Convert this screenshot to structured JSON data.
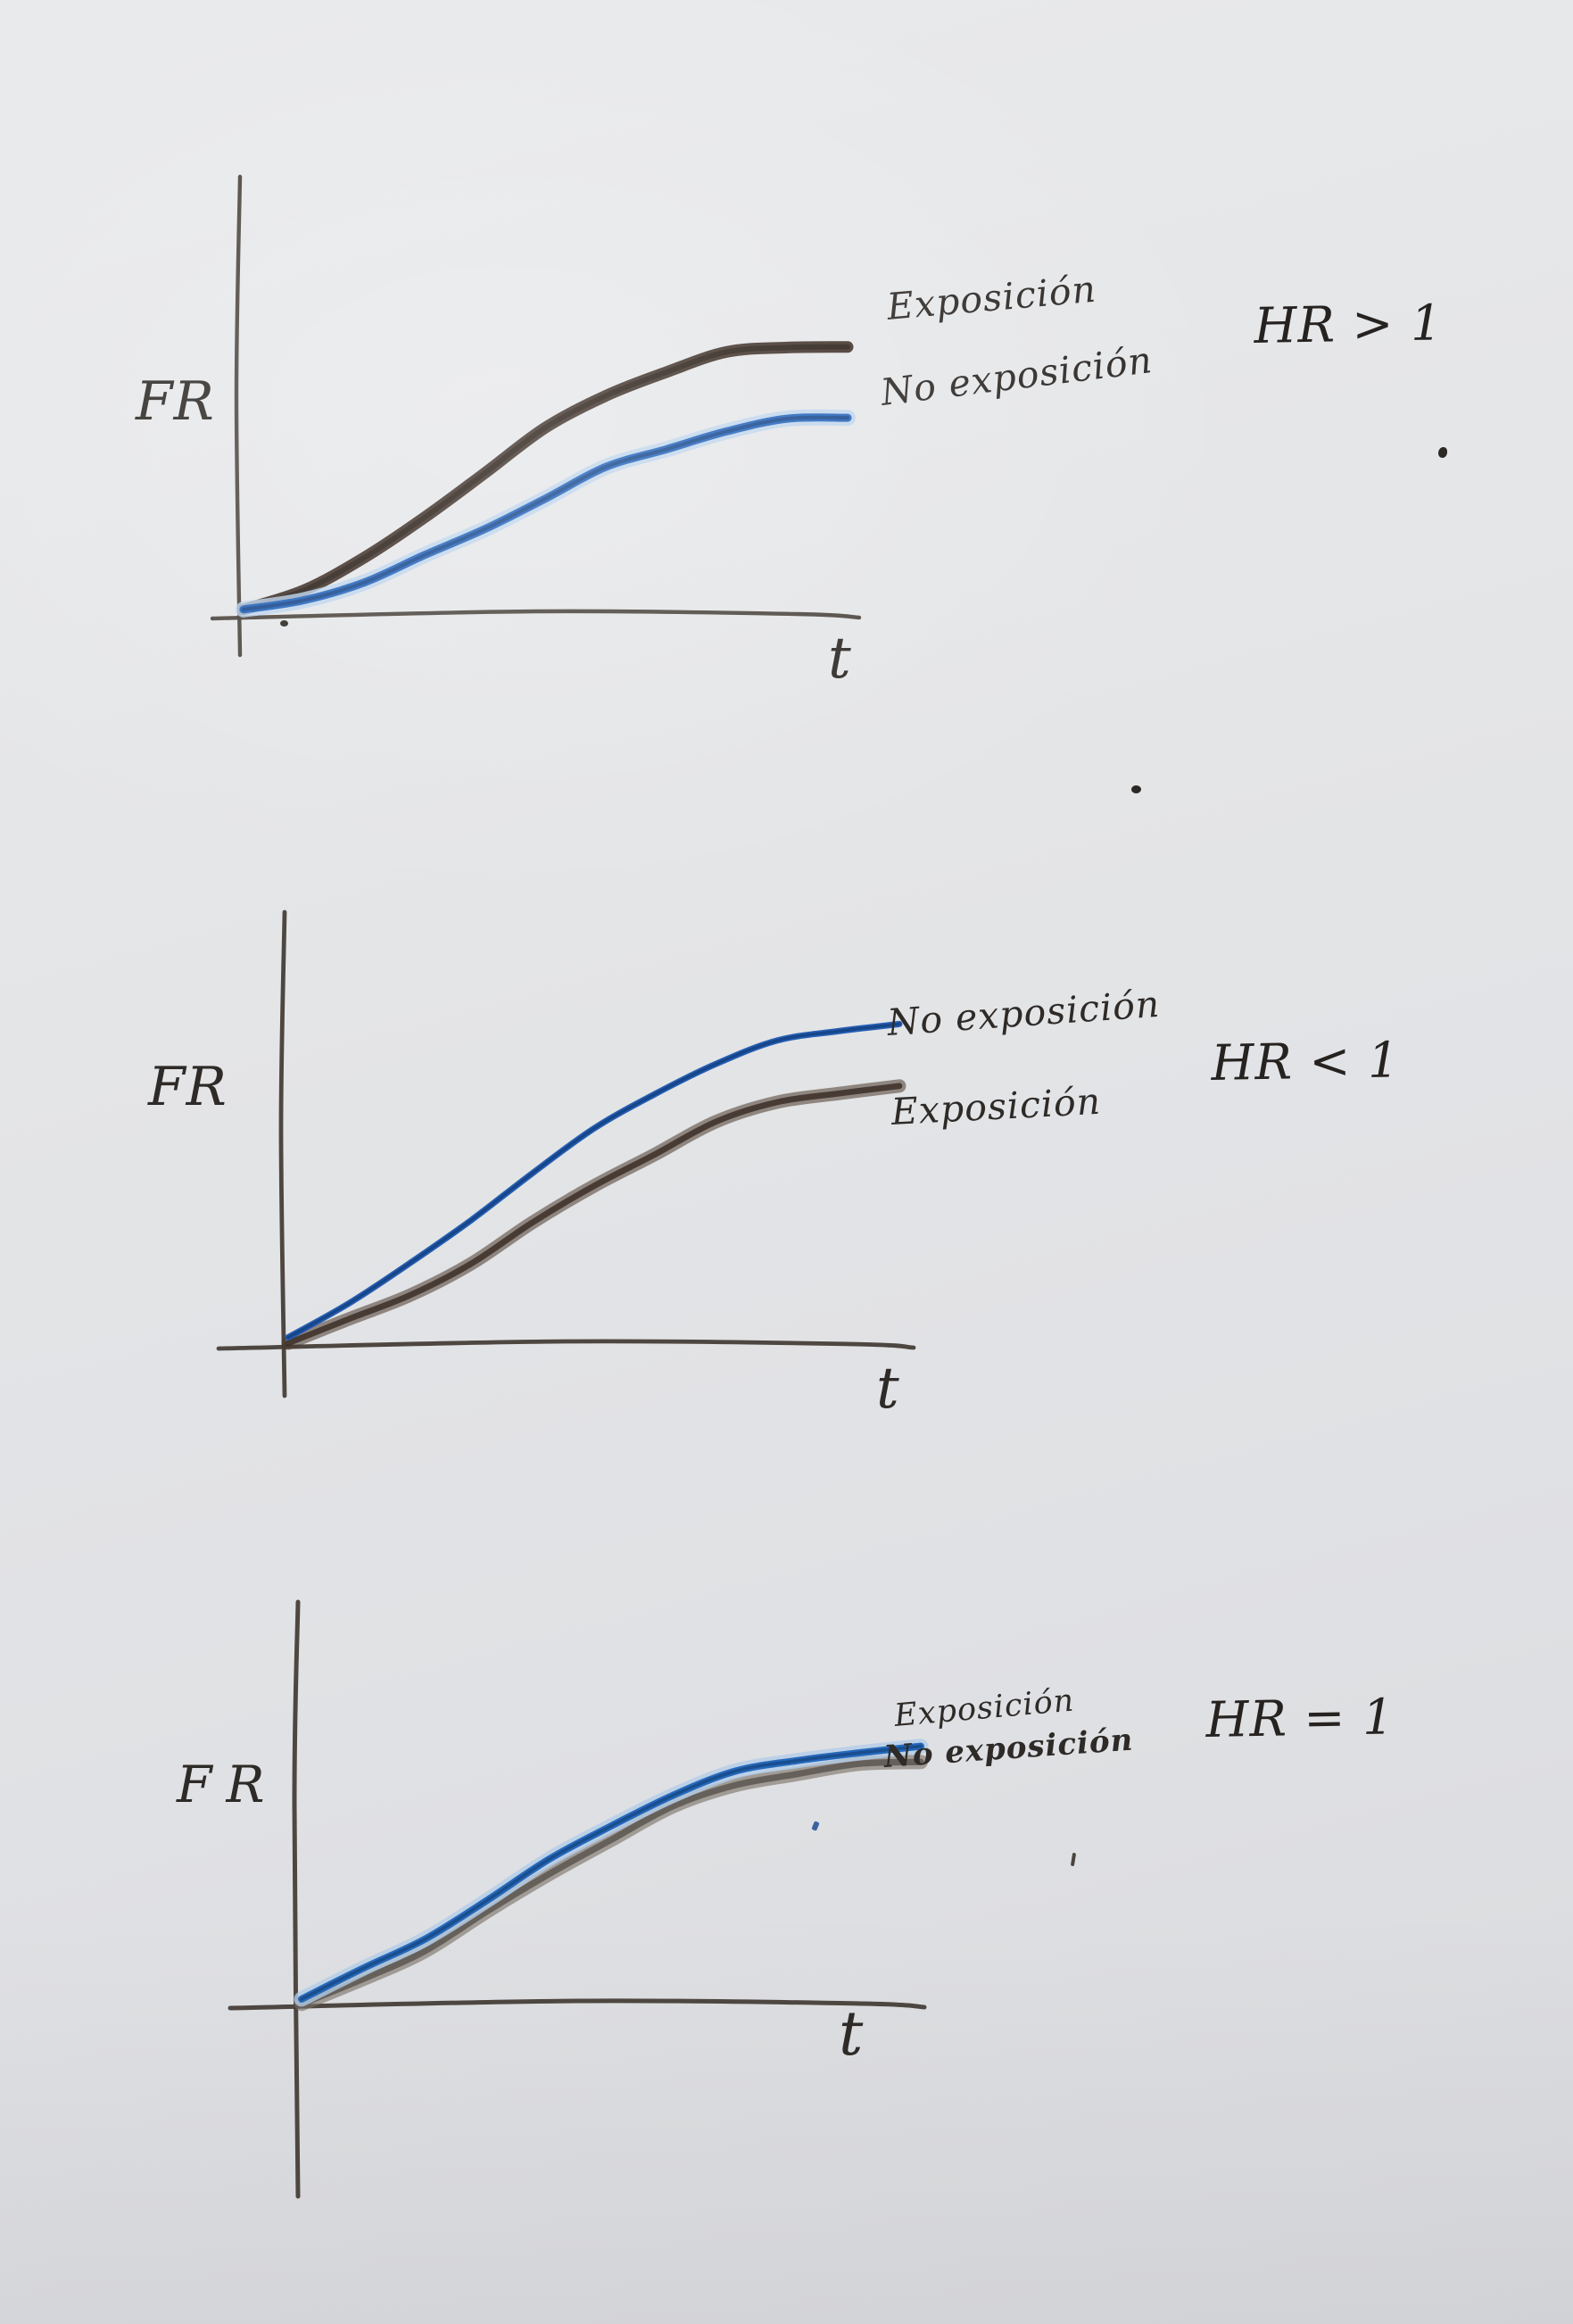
{
  "photo": {
    "paper_color": "#e4e5e7",
    "ink_color": "#3b3430",
    "pencil_black": "#35261d",
    "pencil_blue": "#1e5fb8"
  },
  "chart_data": [
    {
      "type": "line",
      "title": "HR > 1",
      "xlabel": "t",
      "ylabel": "FR",
      "x": [
        0,
        0.1,
        0.2,
        0.3,
        0.4,
        0.5,
        0.6,
        0.7,
        0.8,
        0.9,
        1.0
      ],
      "xlim": [
        0,
        1
      ],
      "ylim": [
        0,
        1
      ],
      "grid": false,
      "legend": "inline-right",
      "series": [
        {
          "name": "Exposición",
          "color": "#35261d",
          "halo": "",
          "values": [
            0,
            0.05,
            0.12,
            0.22,
            0.33,
            0.43,
            0.51,
            0.57,
            0.61,
            0.625,
            0.63
          ]
        },
        {
          "name": "No exposición",
          "color": "#1e5fb8",
          "halo": "#b9d3ee",
          "values": [
            0,
            0.03,
            0.07,
            0.13,
            0.2,
            0.27,
            0.34,
            0.39,
            0.43,
            0.455,
            0.465
          ]
        }
      ]
    },
    {
      "type": "line",
      "title": "HR < 1",
      "xlabel": "t",
      "ylabel": "FR",
      "x": [
        0,
        0.1,
        0.2,
        0.3,
        0.4,
        0.5,
        0.6,
        0.7,
        0.8,
        0.9,
        1.0
      ],
      "xlim": [
        0,
        1
      ],
      "ylim": [
        0,
        1
      ],
      "grid": false,
      "legend": "inline-right",
      "series": [
        {
          "name": "Exposición",
          "color": "#4a382c",
          "halo": "",
          "values": [
            0,
            0.05,
            0.11,
            0.19,
            0.28,
            0.37,
            0.45,
            0.52,
            0.57,
            0.595,
            0.605
          ]
        },
        {
          "name": "No exposición",
          "color": "#1b57b0",
          "halo": "",
          "values": [
            0,
            0.08,
            0.17,
            0.28,
            0.39,
            0.49,
            0.58,
            0.65,
            0.7,
            0.73,
            0.745
          ]
        }
      ]
    },
    {
      "type": "line",
      "title": "HR = 1",
      "xlabel": "t",
      "ylabel": "FR",
      "x": [
        0,
        0.1,
        0.2,
        0.3,
        0.4,
        0.5,
        0.6,
        0.7,
        0.8,
        0.9,
        1.0
      ],
      "xlim": [
        0,
        1
      ],
      "ylim": [
        0,
        1
      ],
      "grid": false,
      "legend": "inline-right",
      "series": [
        {
          "name": "Exposición",
          "color": "#7a7168",
          "halo": "",
          "values": [
            0,
            0.065,
            0.14,
            0.23,
            0.325,
            0.415,
            0.49,
            0.545,
            0.578,
            0.595,
            0.603
          ]
        },
        {
          "name": "No exposición",
          "color": "#1e63b8",
          "halo": "#b3cde9",
          "values": [
            0,
            0.07,
            0.15,
            0.245,
            0.34,
            0.43,
            0.505,
            0.558,
            0.592,
            0.61,
            0.62
          ]
        }
      ]
    }
  ]
}
